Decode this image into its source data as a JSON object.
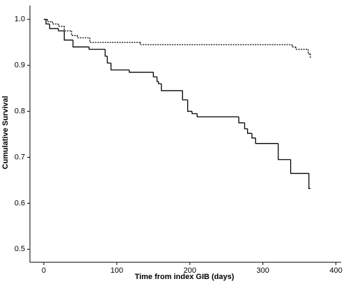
{
  "chart_data": {
    "type": "step",
    "xlabel": "Time from index GIB (days)",
    "ylabel": "Cumulative Survival",
    "xlim": [
      -19,
      407
    ],
    "ylim": [
      0.4716,
      1.03
    ],
    "xticks": [
      0,
      100,
      200,
      300,
      400
    ],
    "yticks": [
      0.5,
      0.6,
      0.7,
      0.8,
      0.9,
      {
        "value": 1,
        "label": "1.0"
      }
    ],
    "series": [
      {
        "color": "#000000",
        "style": "solid",
        "x": [
          0,
          3,
          8,
          20,
          28,
          40,
          62,
          84,
          87,
          92,
          117,
          150,
          155,
          157,
          161,
          190,
          197,
          203,
          210,
          267,
          275,
          279,
          285,
          290,
          321,
          338,
          363,
          365
        ],
        "values": [
          1.0,
          0.99,
          0.98,
          0.975,
          0.955,
          0.94,
          0.935,
          0.92,
          0.905,
          0.89,
          0.885,
          0.875,
          0.865,
          0.86,
          0.845,
          0.825,
          0.8,
          0.795,
          0.788,
          0.775,
          0.762,
          0.752,
          0.742,
          0.73,
          0.695,
          0.665,
          0.632,
          0.632
        ]
      },
      {
        "color": "#000000",
        "style": "dotted",
        "x": [
          0,
          5,
          12,
          20,
          28,
          38,
          46,
          63,
          132,
          340,
          345,
          362,
          365
        ],
        "values": [
          1.0,
          0.995,
          0.99,
          0.985,
          0.975,
          0.965,
          0.96,
          0.95,
          0.945,
          0.94,
          0.935,
          0.925,
          0.915
        ]
      }
    ]
  }
}
